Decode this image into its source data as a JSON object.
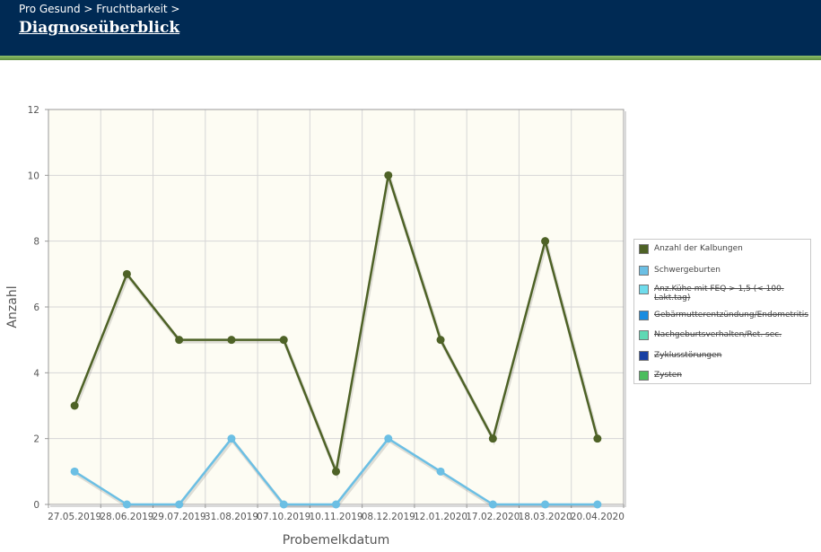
{
  "header": {
    "breadcrumb": "Pro Gesund > Fruchtbarkeit >",
    "title": "Diagnoseüberblick"
  },
  "chart_data": {
    "type": "line",
    "xlabel": "Probemelkdatum",
    "ylabel": "Anzahl",
    "ylim": [
      0,
      12
    ],
    "yticks": [
      "0",
      "2",
      "4",
      "6",
      "8",
      "10",
      "12"
    ],
    "grid": true,
    "legend_position": "right",
    "categories": [
      "27.05.2019",
      "28.06.2019",
      "29.07.2019",
      "31.08.2019",
      "07.10.2019",
      "10.11.2019",
      "08.12.2019",
      "12.01.2020",
      "17.02.2020",
      "18.03.2020",
      "20.04.2020"
    ],
    "series": [
      {
        "name": "Anzahl der Kalbungen",
        "color": "#4e6226",
        "visible": true,
        "values": [
          3,
          7,
          5,
          5,
          5,
          1,
          10,
          5,
          2,
          8,
          2
        ]
      },
      {
        "name": "Schwergeburten",
        "color": "#6bbfe4",
        "visible": true,
        "values": [
          1,
          0,
          0,
          2,
          0,
          0,
          2,
          1,
          0,
          0,
          0
        ]
      },
      {
        "name": "Anz.Kühe mit FEQ > 1,5 (< 100. Lakt.tag)",
        "color": "#6fdcec",
        "visible": false
      },
      {
        "name": "Gebärmutterentzündung/Endometritis",
        "color": "#1a8ce0",
        "visible": false
      },
      {
        "name": "Nachgeburtsverhalten/Ret. sec.",
        "color": "#5fd9b4",
        "visible": false
      },
      {
        "name": "Zyklusstörungen",
        "color": "#173fa3",
        "visible": false
      },
      {
        "name": "Zysten",
        "color": "#4cbd5e",
        "visible": false
      }
    ]
  }
}
